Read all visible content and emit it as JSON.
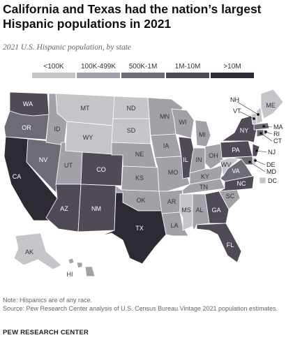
{
  "header": {
    "title": "California and Texas had the nation’s largest Hispanic populations in 2021",
    "subtitle": "2021 U.S. Hispanic population, by state"
  },
  "legend": [
    {
      "label": "<100K",
      "color": "#c5c4c8"
    },
    {
      "label": "100K-499K",
      "color": "#a3a1a8"
    },
    {
      "label": "500K-1M",
      "color": "#6f6b76"
    },
    {
      "label": "1M-10M",
      "color": "#4f4a56"
    },
    {
      "label": ">10M",
      "color": "#2e2a33"
    }
  ],
  "states": [
    {
      "abbr": "WA",
      "bin": "1M-10M"
    },
    {
      "abbr": "OR",
      "bin": "500K-1M"
    },
    {
      "abbr": "CA",
      "bin": ">10M"
    },
    {
      "abbr": "NV",
      "bin": "500K-1M"
    },
    {
      "abbr": "ID",
      "bin": "100K-499K"
    },
    {
      "abbr": "MT",
      "bin": "<100K"
    },
    {
      "abbr": "WY",
      "bin": "<100K"
    },
    {
      "abbr": "UT",
      "bin": "100K-499K"
    },
    {
      "abbr": "CO",
      "bin": "1M-10M"
    },
    {
      "abbr": "AZ",
      "bin": "1M-10M"
    },
    {
      "abbr": "NM",
      "bin": "1M-10M"
    },
    {
      "abbr": "ND",
      "bin": "<100K"
    },
    {
      "abbr": "SD",
      "bin": "<100K"
    },
    {
      "abbr": "NE",
      "bin": "100K-499K"
    },
    {
      "abbr": "KS",
      "bin": "100K-499K"
    },
    {
      "abbr": "OK",
      "bin": "100K-499K"
    },
    {
      "abbr": "TX",
      "bin": ">10M"
    },
    {
      "abbr": "MN",
      "bin": "100K-499K"
    },
    {
      "abbr": "IA",
      "bin": "100K-499K"
    },
    {
      "abbr": "MO",
      "bin": "100K-499K"
    },
    {
      "abbr": "AR",
      "bin": "100K-499K"
    },
    {
      "abbr": "LA",
      "bin": "100K-499K"
    },
    {
      "abbr": "WI",
      "bin": "100K-499K"
    },
    {
      "abbr": "IL",
      "bin": "1M-10M"
    },
    {
      "abbr": "MI",
      "bin": "100K-499K"
    },
    {
      "abbr": "IN",
      "bin": "100K-499K"
    },
    {
      "abbr": "OH",
      "bin": "100K-499K"
    },
    {
      "abbr": "KY",
      "bin": "100K-499K"
    },
    {
      "abbr": "TN",
      "bin": "100K-499K"
    },
    {
      "abbr": "MS",
      "bin": "<100K"
    },
    {
      "abbr": "AL",
      "bin": "100K-499K"
    },
    {
      "abbr": "GA",
      "bin": "1M-10M"
    },
    {
      "abbr": "FL",
      "bin": "1M-10M"
    },
    {
      "abbr": "SC",
      "bin": "100K-499K"
    },
    {
      "abbr": "NC",
      "bin": "1M-10M"
    },
    {
      "abbr": "VA",
      "bin": "500K-1M"
    },
    {
      "abbr": "WV",
      "bin": "<100K"
    },
    {
      "abbr": "PA",
      "bin": "1M-10M"
    },
    {
      "abbr": "NY",
      "bin": "1M-10M"
    },
    {
      "abbr": "ME",
      "bin": "<100K"
    },
    {
      "abbr": "AK",
      "bin": "<100K"
    },
    {
      "abbr": "HI",
      "bin": "100K-499K"
    },
    {
      "abbr": "NH",
      "bin": "<100K"
    },
    {
      "abbr": "VT",
      "bin": "<100K"
    },
    {
      "abbr": "MA",
      "bin": "500K-1M"
    },
    {
      "abbr": "RI",
      "bin": "100K-499K"
    },
    {
      "abbr": "CT",
      "bin": "500K-1M"
    },
    {
      "abbr": "NJ",
      "bin": "1M-10M"
    },
    {
      "abbr": "DE",
      "bin": "<100K"
    },
    {
      "abbr": "MD",
      "bin": "500K-1M"
    },
    {
      "abbr": "DC",
      "bin": "<100K"
    }
  ],
  "footer": {
    "note": "Note: Hispanics are of any race.",
    "source": "Source: Pew Research Center analysis of U.S. Census Bureau Vintage 2021 population estimates.",
    "org": "PEW RESEARCH CENTER"
  }
}
